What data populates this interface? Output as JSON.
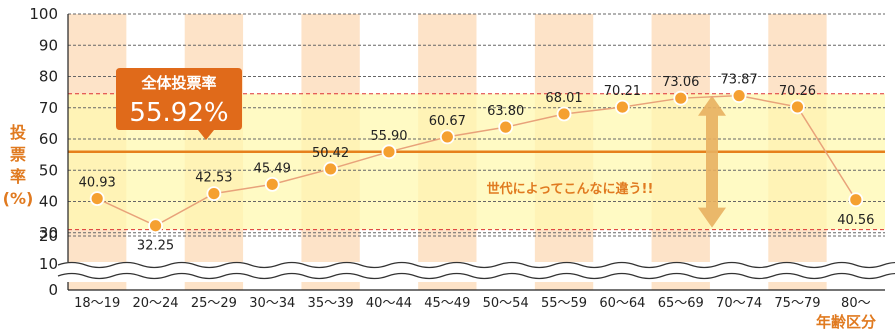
{
  "chart_data": {
    "type": "line",
    "categories": [
      "18〜19",
      "20〜24",
      "25〜29",
      "30〜34",
      "35〜39",
      "40〜44",
      "45〜49",
      "50〜54",
      "55〜59",
      "60〜64",
      "65〜69",
      "70〜74",
      "75〜79",
      "80〜"
    ],
    "values": [
      40.93,
      32.25,
      42.53,
      45.49,
      50.42,
      55.9,
      60.67,
      63.8,
      68.01,
      70.21,
      73.06,
      73.87,
      70.26,
      40.56
    ],
    "value_labels": [
      "40.93",
      "32.25",
      "42.53",
      "45.49",
      "50.42",
      "55.90",
      "60.67",
      "63.80",
      "68.01",
      "70.21",
      "73.06",
      "73.87",
      "70.26",
      "40.56"
    ],
    "y_ticks": [
      0,
      10,
      20,
      30,
      40,
      50,
      60,
      70,
      80,
      90,
      100
    ],
    "y_tick_labels": [
      "0",
      "10",
      "20",
      "30",
      "40",
      "50",
      "60",
      "70",
      "80",
      "90",
      "100"
    ],
    "ylim": [
      0,
      100
    ],
    "axis_break": [
      10,
      20
    ],
    "ylabel": [
      "投",
      "票",
      "率",
      "(%)"
    ],
    "xlabel": "年齢区分",
    "reference_line": {
      "value": 55.92,
      "title": "全体投票率",
      "label": "55.92%"
    },
    "band": [
      31.0,
      74.5
    ],
    "annotation": "世代によってこんなに違う!!",
    "grid": true,
    "colors": {
      "line": "#e8a27a",
      "marker_fill": "#f5a030",
      "marker_stroke": "#ffffff",
      "column_shade": "#fde3c8",
      "band": "#fff8b0",
      "reference": "#e6801c",
      "callout": "#e06a1a",
      "arrow": "#e8b060",
      "axis_text": "#e07a20"
    }
  }
}
